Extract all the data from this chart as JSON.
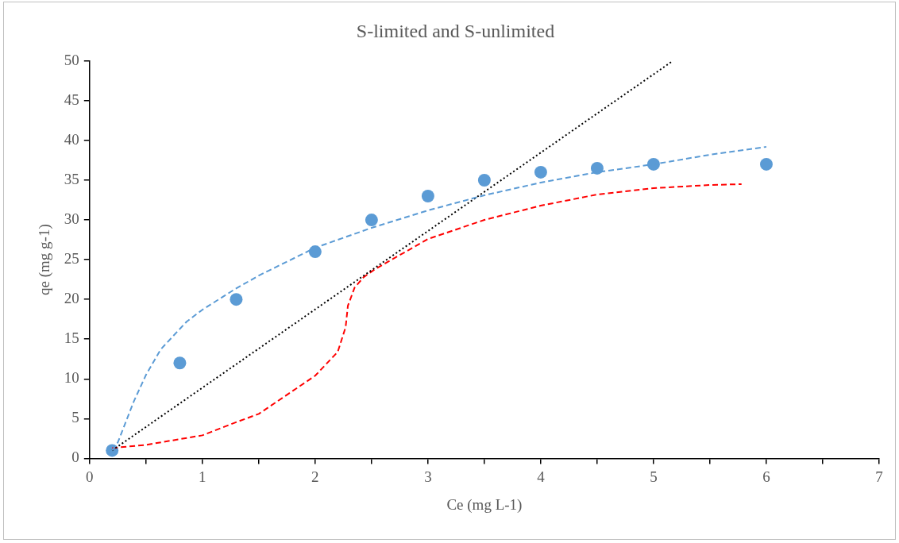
{
  "chart_data": {
    "type": "scatter",
    "title": "S-limited and S-unlimited",
    "xlabel": "Ce (mg L-1)",
    "ylabel": "qe (mg g-1)",
    "xlim": [
      0,
      7
    ],
    "xticks": [
      0,
      {
        "value": 0.5,
        "label": null
      },
      1,
      {
        "value": 1.5,
        "label": null
      },
      2,
      {
        "value": 2.5,
        "label": null
      },
      3,
      {
        "value": 3.5,
        "label": null
      },
      4,
      {
        "value": 4.5,
        "label": null
      },
      5,
      {
        "value": 5.5,
        "label": null
      },
      6,
      {
        "value": 6.5,
        "label": null
      },
      7
    ],
    "ylim": [
      0,
      50
    ],
    "yticks": [
      0,
      5,
      10,
      15,
      20,
      25,
      30,
      35,
      40,
      45,
      50
    ],
    "grid": false,
    "legend": false,
    "marker": "circle",
    "series": [
      {
        "type": "line",
        "color": "#5b9bd5",
        "line_style": "dashed",
        "marker": "none",
        "x": [
          0.2,
          0.25,
          0.39,
          0.5,
          0.63,
          0.86,
          1,
          1.29,
          1.5,
          2,
          2.5,
          3,
          3.5,
          4,
          4.5,
          5,
          5.5,
          6
        ],
        "values": [
          1,
          2,
          7.1,
          10.5,
          13.7,
          17.2,
          18.7,
          21.3,
          23,
          26.5,
          29,
          31.2,
          33.1,
          34.7,
          36,
          37,
          38.2,
          39.2
        ]
      },
      {
        "type": "line",
        "color": "#000000",
        "line_style": "dotted",
        "marker": "none",
        "x": [
          0.2,
          5.17
        ],
        "values": [
          1,
          50
        ]
      },
      {
        "type": "line",
        "color": "#ff0000",
        "line_style": "dashed",
        "marker": "none",
        "x": [
          0.2,
          0.5,
          1,
          1.29,
          1.5,
          2,
          2.2,
          2.27,
          2.29,
          2.35,
          2.43,
          2.53,
          3,
          3.5,
          4,
          4.5,
          5,
          5.5,
          5.78
        ],
        "values": [
          1.3,
          1.7,
          2.9,
          4.5,
          5.6,
          10.4,
          13.4,
          16.5,
          19.2,
          21.5,
          22.8,
          23.8,
          27.6,
          30,
          31.8,
          33.2,
          34,
          34.4,
          34.5
        ]
      },
      {
        "color": "#5b9bd5",
        "x": [
          0.2,
          0.8,
          1.3,
          2,
          2.5,
          3,
          3.5,
          4,
          4.5,
          5,
          6
        ],
        "values": [
          1,
          12,
          20,
          26,
          30,
          33,
          35,
          36,
          36.5,
          37,
          37
        ]
      }
    ]
  }
}
